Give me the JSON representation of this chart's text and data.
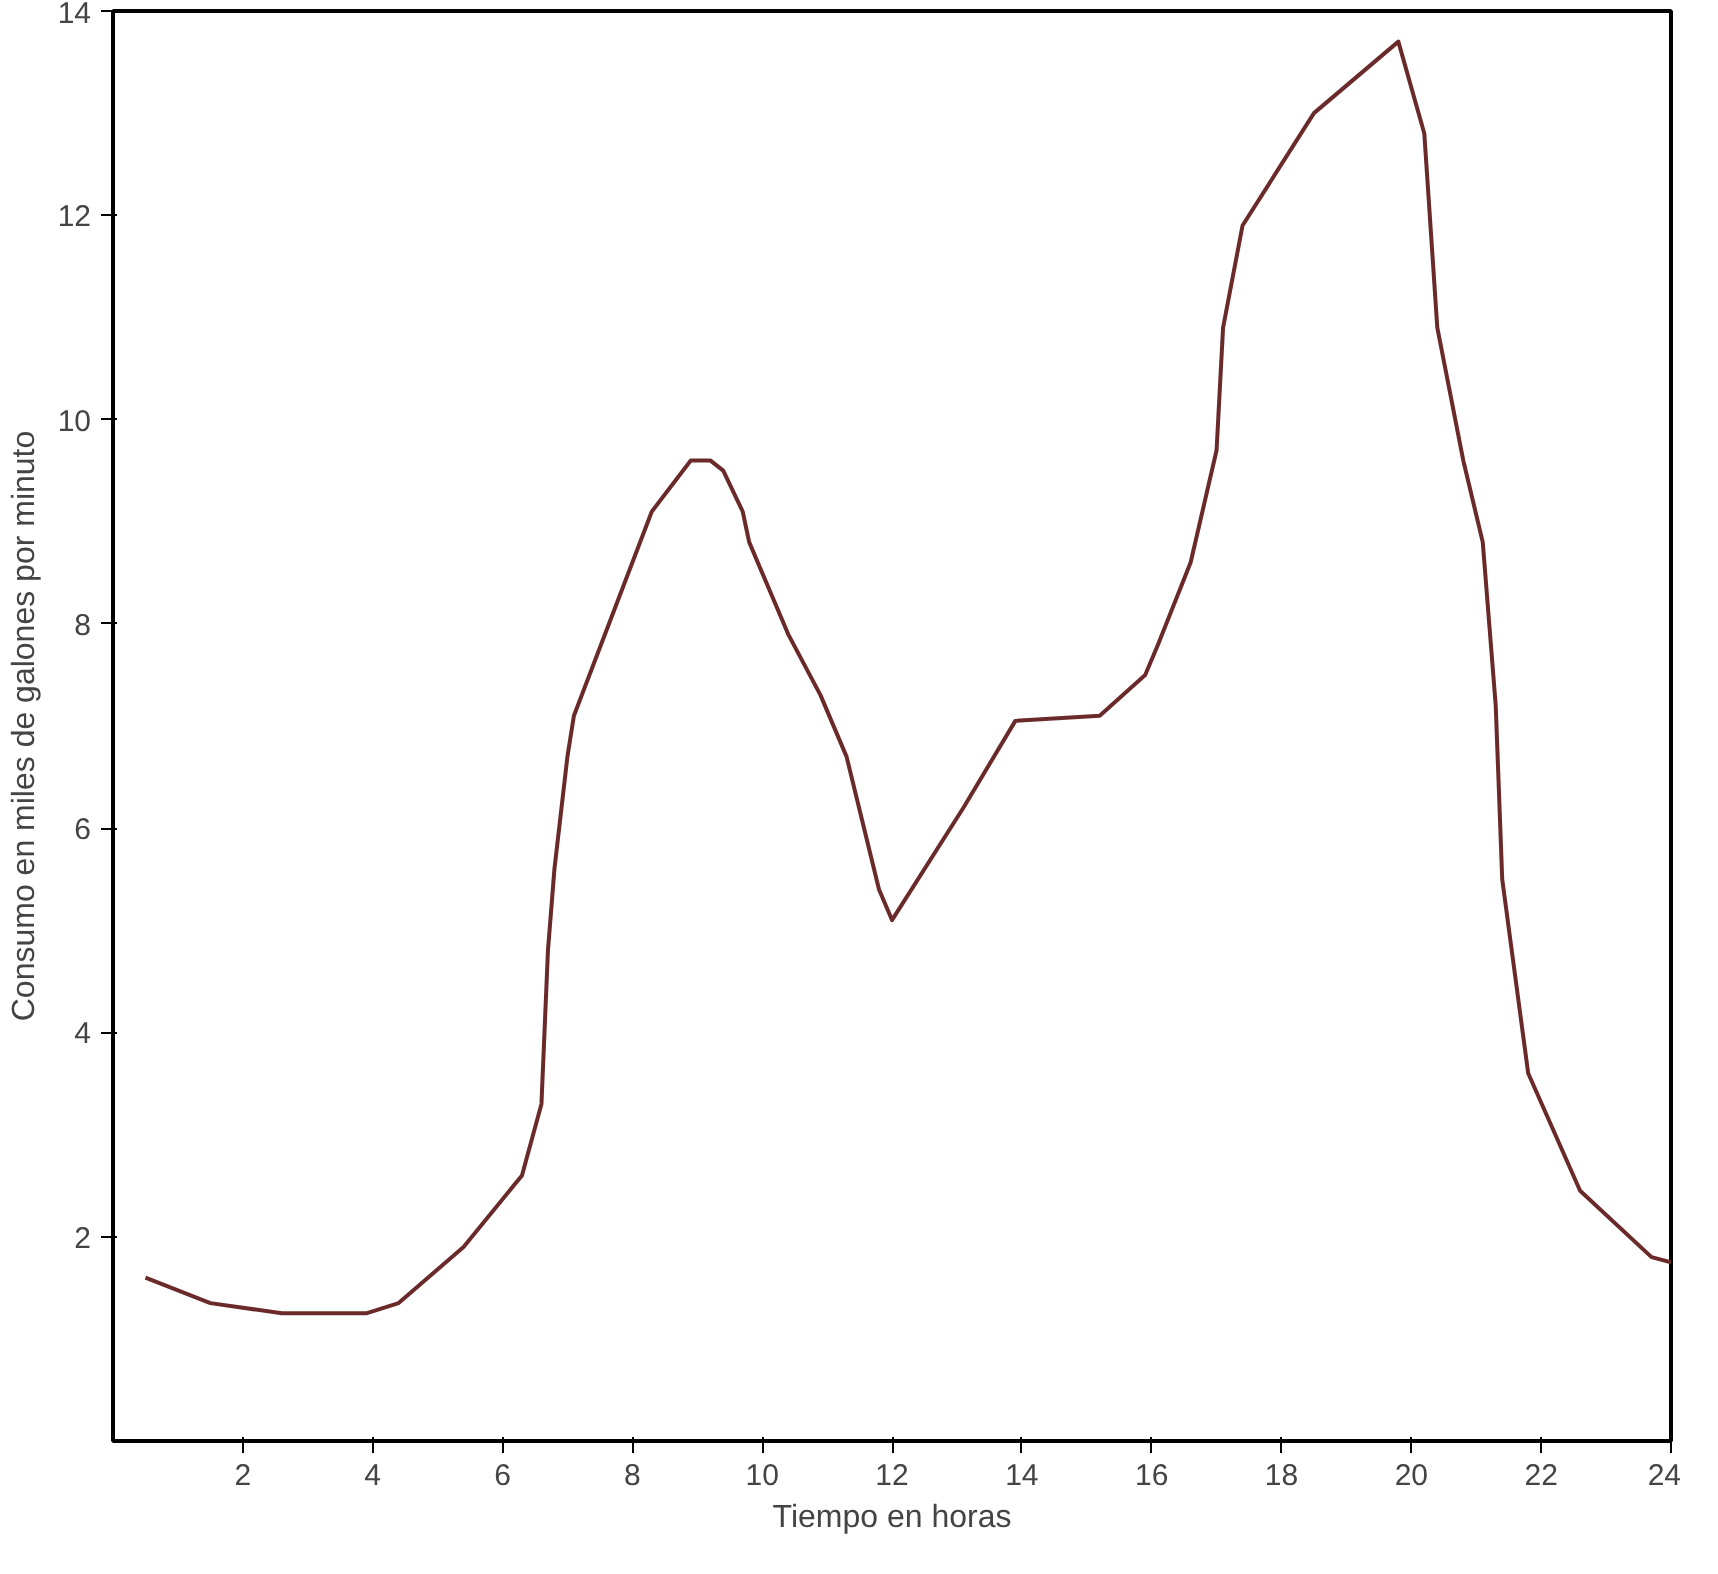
{
  "chart_data": {
    "type": "line",
    "xlabel": "Tiempo en horas",
    "ylabel": "Consumo en miles de galones por minuto",
    "x": [
      0.5,
      1.5,
      2.6,
      3.9,
      4.4,
      5.4,
      6.3,
      6.6,
      6.7,
      6.8,
      7.0,
      7.1,
      8.3,
      8.9,
      9.2,
      9.4,
      9.7,
      9.8,
      10.4,
      10.9,
      11.3,
      11.8,
      12.0,
      13.1,
      13.9,
      15.2,
      15.9,
      16.1,
      16.6,
      17.0,
      17.1,
      17.4,
      18.5,
      19.8,
      20.2,
      20.4,
      20.8,
      21.1,
      21.3,
      21.4,
      21.8,
      22.6,
      23.7,
      24.0
    ],
    "series": [
      {
        "color": "#6b2a2a",
        "values": [
          1.6,
          1.35,
          1.25,
          1.25,
          1.35,
          1.9,
          2.6,
          3.3,
          4.8,
          5.6,
          6.7,
          7.1,
          9.1,
          9.6,
          9.6,
          9.5,
          9.1,
          8.8,
          7.9,
          7.3,
          6.7,
          5.4,
          5.1,
          6.2,
          7.05,
          7.1,
          7.5,
          7.8,
          8.6,
          9.7,
          10.9,
          11.9,
          13.0,
          13.7,
          12.8,
          10.9,
          9.6,
          8.8,
          7.2,
          5.5,
          3.6,
          2.45,
          1.8,
          1.75
        ]
      }
    ],
    "xlim": [
      0,
      24
    ],
    "ylim": [
      0,
      14
    ],
    "xticks": [
      2,
      4,
      6,
      8,
      10,
      12,
      14,
      16,
      18,
      20,
      22,
      24
    ],
    "yticks": [
      2,
      4,
      6,
      8,
      10,
      12,
      14
    ],
    "grid": false,
    "marker": "none",
    "line_style": "solid"
  }
}
